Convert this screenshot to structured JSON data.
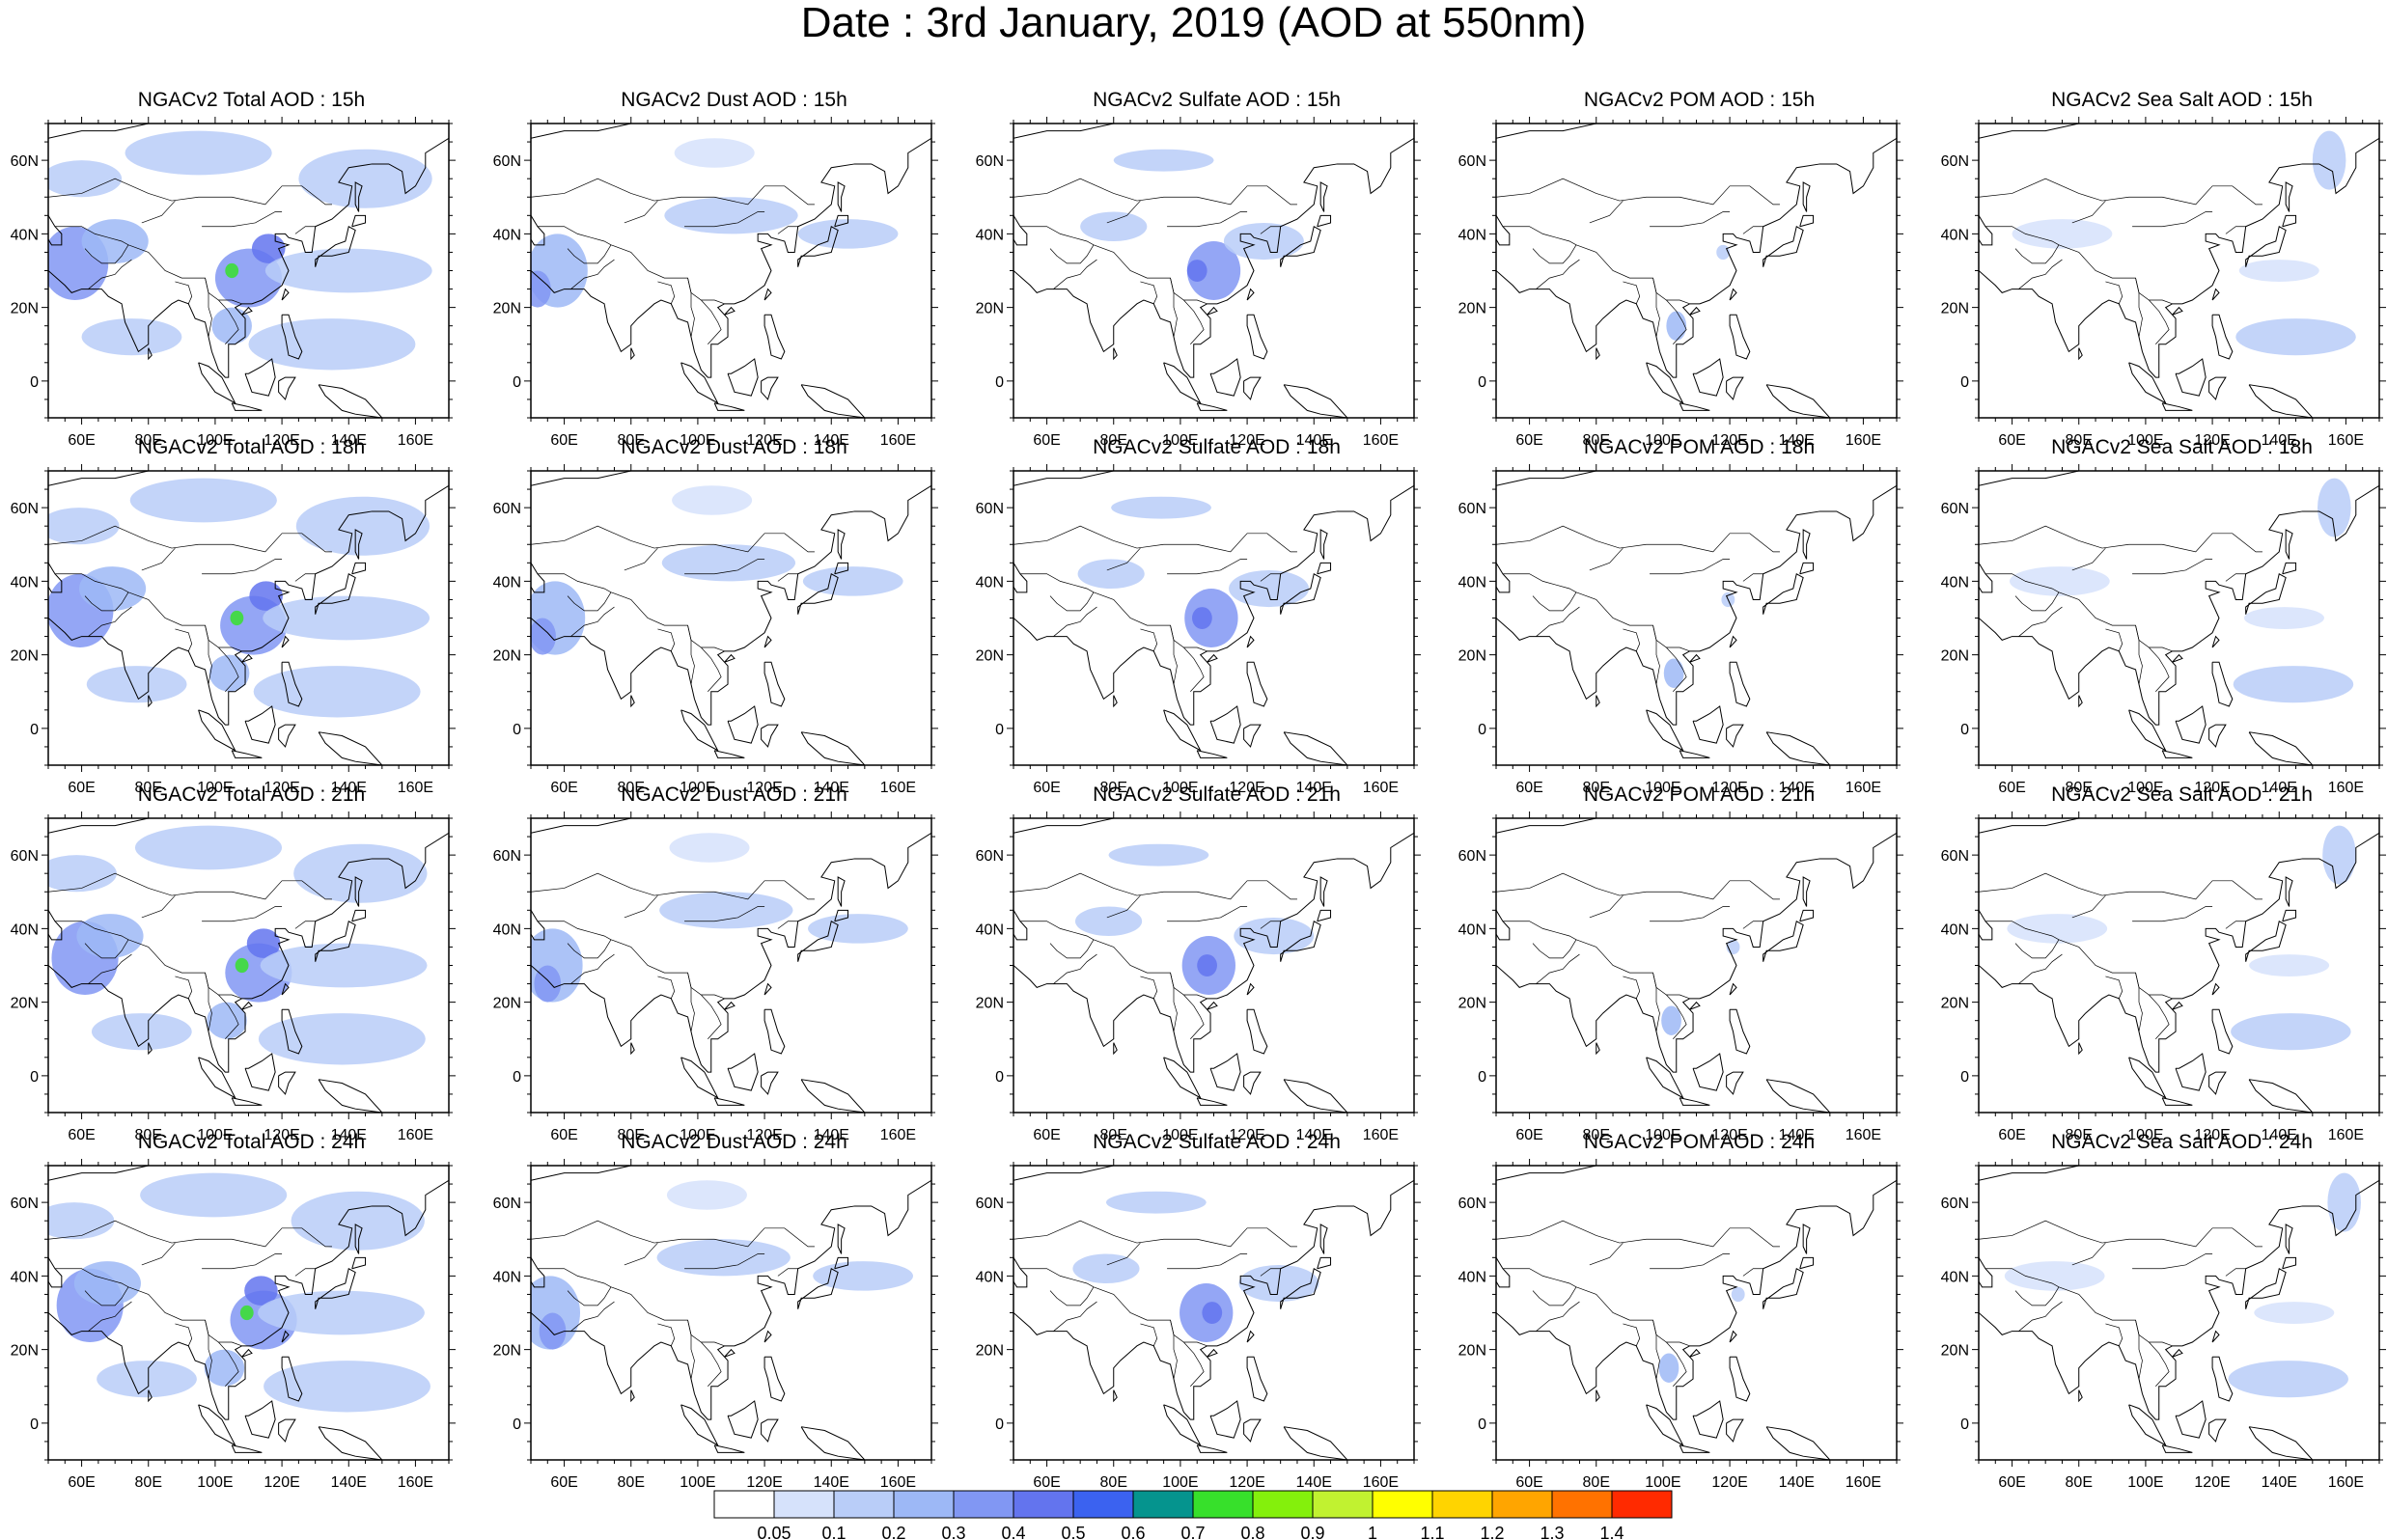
{
  "title": "Date : 3rd January, 2019 (AOD at 550nm)",
  "axes": {
    "lon_ticks": [
      "60E",
      "80E",
      "100E",
      "120E",
      "140E",
      "160E"
    ],
    "lat_ticks": [
      "60N",
      "40N",
      "20N",
      "0"
    ],
    "lon_range": [
      50,
      170
    ],
    "lat_range": [
      -10,
      70
    ]
  },
  "colorbar": {
    "labels": [
      "0.05",
      "0.1",
      "0.2",
      "0.3",
      "0.4",
      "0.5",
      "0.6",
      "0.7",
      "0.8",
      "0.9",
      "1",
      "1.1",
      "1.2",
      "1.3",
      "1.4"
    ],
    "colors": [
      "#ffffff",
      "#d6e2fb",
      "#b9cdf8",
      "#9db8f6",
      "#8197f3",
      "#6374ee",
      "#3b62f0",
      "#05948e",
      "#37e02b",
      "#84f00c",
      "#c1f230",
      "#ffff00",
      "#ffd400",
      "#ffa500",
      "#ff7200",
      "#ff2a00"
    ]
  },
  "panel_titles": [
    [
      "NGACv2 Total AOD : 15h",
      "NGACv2 Dust AOD : 15h",
      "NGACv2 Sulfate AOD : 15h",
      "NGACv2 POM AOD : 15h",
      "NGACv2 Sea Salt AOD : 15h"
    ],
    [
      "NGACv2 Total AOD : 18h",
      "NGACv2 Dust AOD : 18h",
      "NGACv2 Sulfate AOD : 18h",
      "NGACv2 POM AOD : 18h",
      "NGACv2 Sea Salt AOD : 18h"
    ],
    [
      "NGACv2 Total AOD : 21h",
      "NGACv2 Dust AOD : 21h",
      "NGACv2 Sulfate AOD : 21h",
      "NGACv2 POM AOD : 21h",
      "NGACv2 Sea Salt AOD : 21h"
    ],
    [
      "NGACv2 Total AOD : 24h",
      "NGACv2 Dust AOD : 24h",
      "NGACv2 Sulfate AOD : 24h",
      "NGACv2 POM AOD : 24h",
      "NGACv2 Sea Salt  AOD : 24h"
    ]
  ],
  "aerosol_fields": {
    "total": [
      {
        "lon": 60,
        "lat": 55,
        "rlon": 12,
        "rlat": 5,
        "v": 0.12
      },
      {
        "lon": 95,
        "lat": 62,
        "rlon": 22,
        "rlat": 6,
        "v": 0.12
      },
      {
        "lon": 145,
        "lat": 55,
        "rlon": 20,
        "rlat": 8,
        "v": 0.12
      },
      {
        "lon": 58,
        "lat": 32,
        "rlon": 10,
        "rlat": 10,
        "v": 0.3
      },
      {
        "lon": 70,
        "lat": 38,
        "rlon": 10,
        "rlat": 6,
        "v": 0.2
      },
      {
        "lon": 110,
        "lat": 28,
        "rlon": 10,
        "rlat": 8,
        "v": 0.3
      },
      {
        "lon": 116,
        "lat": 36,
        "rlon": 5,
        "rlat": 4,
        "v": 0.45
      },
      {
        "lon": 105,
        "lat": 30,
        "rlon": 2,
        "rlat": 2,
        "v": 0.75
      },
      {
        "lon": 140,
        "lat": 30,
        "rlon": 25,
        "rlat": 6,
        "v": 0.12
      },
      {
        "lon": 135,
        "lat": 10,
        "rlon": 25,
        "rlat": 7,
        "v": 0.12
      },
      {
        "lon": 105,
        "lat": 15,
        "rlon": 6,
        "rlat": 5,
        "v": 0.2
      },
      {
        "lon": 75,
        "lat": 12,
        "rlon": 15,
        "rlat": 5,
        "v": 0.1
      }
    ],
    "dust": [
      {
        "lon": 58,
        "lat": 30,
        "rlon": 9,
        "rlat": 10,
        "v": 0.2
      },
      {
        "lon": 52,
        "lat": 25,
        "rlon": 4,
        "rlat": 5,
        "v": 0.35
      },
      {
        "lon": 110,
        "lat": 45,
        "rlon": 20,
        "rlat": 5,
        "v": 0.1
      },
      {
        "lon": 145,
        "lat": 40,
        "rlon": 15,
        "rlat": 4,
        "v": 0.1
      },
      {
        "lon": 105,
        "lat": 62,
        "rlon": 12,
        "rlat": 4,
        "v": 0.08
      }
    ],
    "sulfate": [
      {
        "lon": 110,
        "lat": 30,
        "rlon": 8,
        "rlat": 8,
        "v": 0.3
      },
      {
        "lon": 105,
        "lat": 30,
        "rlon": 3,
        "rlat": 3,
        "v": 0.45
      },
      {
        "lon": 95,
        "lat": 60,
        "rlon": 15,
        "rlat": 3,
        "v": 0.1
      },
      {
        "lon": 125,
        "lat": 38,
        "rlon": 12,
        "rlat": 5,
        "v": 0.12
      },
      {
        "lon": 80,
        "lat": 42,
        "rlon": 10,
        "rlat": 4,
        "v": 0.1
      }
    ],
    "pom": [
      {
        "lon": 104,
        "lat": 15,
        "rlon": 3,
        "rlat": 4,
        "v": 0.2
      },
      {
        "lon": 118,
        "lat": 35,
        "rlon": 2,
        "rlat": 2,
        "v": 0.12
      }
    ],
    "seasalt": [
      {
        "lon": 145,
        "lat": 12,
        "rlon": 18,
        "rlat": 5,
        "v": 0.15
      },
      {
        "lon": 155,
        "lat": 60,
        "rlon": 5,
        "rlat": 8,
        "v": 0.1
      },
      {
        "lon": 75,
        "lat": 40,
        "rlon": 15,
        "rlat": 4,
        "v": 0.08
      },
      {
        "lon": 140,
        "lat": 30,
        "rlon": 12,
        "rlat": 3,
        "v": 0.08
      }
    ]
  },
  "panel_fields": [
    "total",
    "dust",
    "sulfate",
    "pom",
    "seasalt"
  ]
}
